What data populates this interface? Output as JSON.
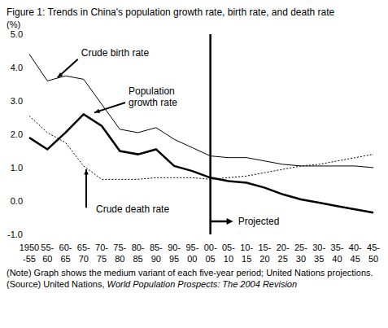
{
  "chart_data": {
    "type": "line",
    "title": "Figure 1: Trends in China's population growth rate, birth rate, and death rate",
    "y_label": "(%)",
    "categories": [
      "1950-55",
      "55-60",
      "60-65",
      "65-70",
      "70-75",
      "75-80",
      "80-85",
      "85-90",
      "90-95",
      "95-00",
      "00-05",
      "05-10",
      "10-15",
      "15-20",
      "20-25",
      "25-30",
      "30-35",
      "35-40",
      "40-45",
      "45-50"
    ],
    "series": [
      {
        "name": "Crude birth rate",
        "color": "#000000",
        "line_style": "solid",
        "values": [
          4.4,
          3.6,
          3.75,
          3.65,
          2.9,
          2.15,
          2.05,
          2.2,
          1.85,
          1.6,
          1.35,
          1.3,
          1.3,
          1.2,
          1.1,
          1.05,
          1.05,
          1.05,
          1.05,
          1.0
        ]
      },
      {
        "name": "Population growth rate",
        "color": "#000000",
        "line_style": "solid",
        "values": [
          1.9,
          1.55,
          2.05,
          2.6,
          2.25,
          1.5,
          1.4,
          1.55,
          1.05,
          0.9,
          0.7,
          0.6,
          0.55,
          0.4,
          0.2,
          0.05,
          -0.05,
          -0.15,
          -0.25,
          -0.35
        ]
      },
      {
        "name": "Crude death rate",
        "color": "#000000",
        "line_style": "dotted",
        "values": [
          2.55,
          2.05,
          1.75,
          1.05,
          0.65,
          0.65,
          0.65,
          0.7,
          0.7,
          0.7,
          0.65,
          0.7,
          0.75,
          0.85,
          0.95,
          1.05,
          1.1,
          1.2,
          1.3,
          1.4
        ]
      }
    ],
    "ylim": [
      -1,
      5
    ],
    "yticks": [
      {
        "value": -1,
        "label": "-1.0"
      },
      {
        "value": 0,
        "label": "0.0"
      },
      {
        "value": 1,
        "label": "1.0"
      },
      {
        "value": 2,
        "label": "2.0"
      },
      {
        "value": 3,
        "label": "3.0"
      },
      {
        "value": 4,
        "label": "4.0"
      },
      {
        "value": 5,
        "label": "5.0"
      }
    ],
    "grid": false,
    "legend": "none",
    "annotations": [
      {
        "text": "Projected",
        "x": "00-05"
      }
    ],
    "note": "(Note) Graph shows the medium variant of each five-year period; United Nations projections.",
    "source": {
      "prefix": "(Source) United Nations, ",
      "italic": "World Population Prospects: The 2004 Revision"
    }
  }
}
